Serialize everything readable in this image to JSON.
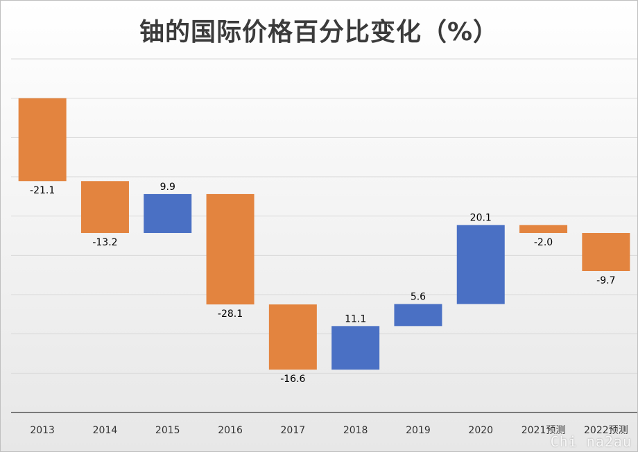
{
  "chart_data": {
    "type": "waterfall",
    "title": "铀的国际价格百分比变化（%）",
    "xlabel": "",
    "ylabel": "",
    "categories": [
      "2013",
      "2014",
      "2015",
      "2016",
      "2017",
      "2018",
      "2019",
      "2020",
      "2021预测",
      "2022预测"
    ],
    "values": [
      -21.1,
      -13.2,
      9.9,
      -28.1,
      -16.6,
      11.1,
      5.6,
      20.1,
      -2.0,
      -9.7
    ],
    "value_labels": [
      "-21.1",
      "-13.2",
      "9.9",
      "-28.1",
      "-16.6",
      "11.1",
      "5.6",
      "20.1",
      "-2.0",
      "-9.7"
    ],
    "ylim": [
      -80,
      10
    ],
    "grid": true,
    "legend": "none",
    "colors": {
      "decrease": "#E3843F",
      "increase": "#4A70C4",
      "grid": "#d9d9d9",
      "axis": "#555555"
    }
  },
  "watermark": "Chi na2au"
}
